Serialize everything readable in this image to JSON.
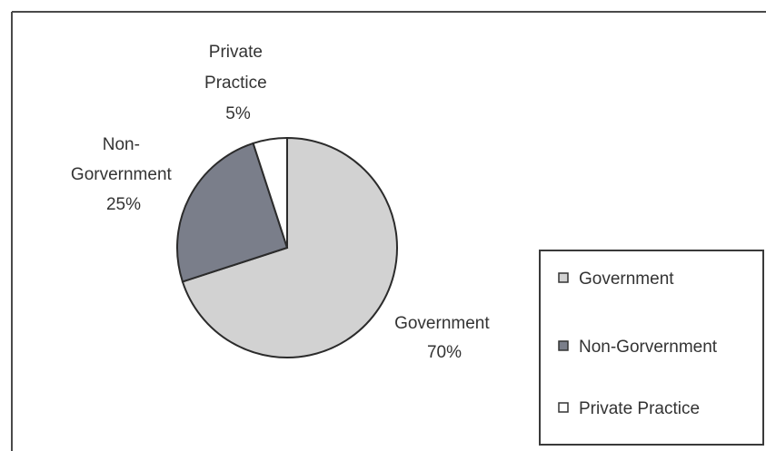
{
  "chart_data": {
    "type": "pie",
    "title": "",
    "slices": [
      {
        "label": "Government",
        "value": 70,
        "value_label": "70%",
        "color": "#d2d2d2"
      },
      {
        "label": "Non-Gorvernment",
        "value": 25,
        "value_label": "25%",
        "color": "#7a7e8a"
      },
      {
        "label": "Private Practice",
        "value": 5,
        "value_label": "5%",
        "color": "#ffffff"
      }
    ],
    "slice_labels": [
      {
        "lines": [
          "Government",
          "70%"
        ]
      },
      {
        "lines": [
          "Non-",
          "Gorvernment",
          "25%"
        ]
      },
      {
        "lines": [
          "Private",
          "Practice",
          "5%"
        ]
      }
    ],
    "legend": {
      "placement": "bottom-right",
      "entries": [
        "Government",
        "Non-Gorvernment",
        "Private Practice"
      ]
    }
  }
}
